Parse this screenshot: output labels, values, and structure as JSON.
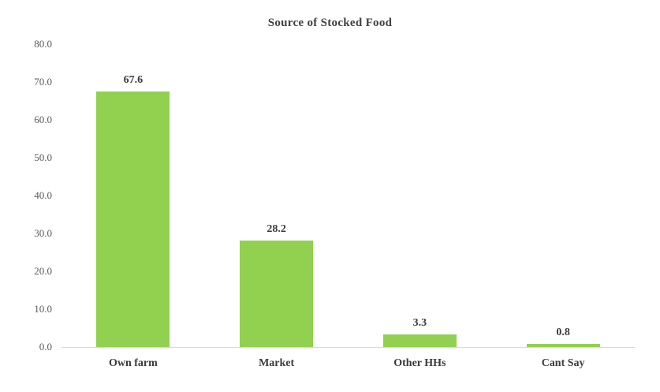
{
  "chart_data": {
    "type": "bar",
    "title": "Source of Stocked Food",
    "categories": [
      "Own farm",
      "Market",
      "Other HHs",
      "Cant Say"
    ],
    "values": [
      67.6,
      28.2,
      3.3,
      0.8
    ],
    "value_labels": [
      "67.6",
      "28.2",
      "3.3",
      "0.8"
    ],
    "xlabel": "",
    "ylabel": "",
    "ylim": [
      0,
      80
    ],
    "yticks": [
      0,
      10,
      20,
      30,
      40,
      50,
      60,
      70,
      80
    ],
    "ytick_labels": [
      "0.0",
      "10.0",
      "20.0",
      "30.0",
      "40.0",
      "50.0",
      "60.0",
      "70.0",
      "80.0"
    ],
    "grid": false,
    "legend": false,
    "bar_color": "#92d050",
    "colors": {
      "background": "#ffffff",
      "title": "#404040",
      "value_label": "#3a3a3a",
      "tick_label": "#595959",
      "axis_line": "#d9d9d9"
    }
  }
}
